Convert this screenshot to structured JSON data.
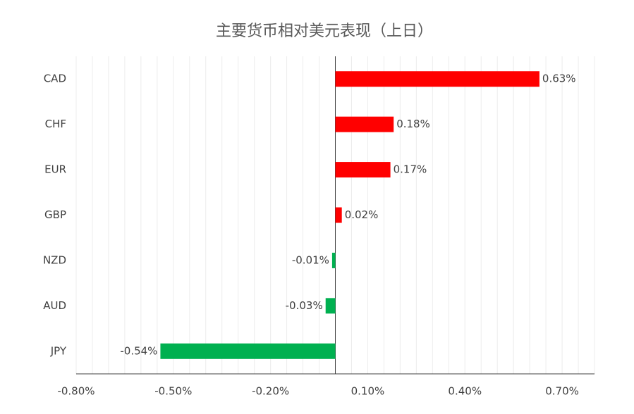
{
  "chart_data": {
    "type": "hbar",
    "title": "主要货币相对美元表现（上日）",
    "categories": [
      "CAD",
      "CHF",
      "EUR",
      "GBP",
      "NZD",
      "AUD",
      "JPY"
    ],
    "values": [
      0.63,
      0.18,
      0.17,
      0.02,
      -0.01,
      -0.03,
      -0.54
    ],
    "value_labels": [
      "0.63%",
      "0.18%",
      "0.17%",
      "0.02%",
      "-0.01%",
      "-0.03%",
      "-0.54%"
    ],
    "positive_color": "#ff0000",
    "negative_color": "#00b050",
    "xlim": [
      -0.8,
      0.8
    ],
    "xticks": [
      {
        "value": -0.8,
        "label": "-0.80%"
      },
      {
        "value": -0.5,
        "label": "-0.50%"
      },
      {
        "value": -0.2,
        "label": "-0.20%"
      },
      {
        "value": 0.1,
        "label": "0.10%"
      },
      {
        "value": 0.4,
        "label": "0.40%"
      },
      {
        "value": 0.7,
        "label": "0.70%"
      }
    ],
    "minor_xticks": [
      -0.75,
      -0.7,
      -0.65,
      -0.6,
      -0.55,
      -0.45,
      -0.4,
      -0.35,
      -0.3,
      -0.25,
      -0.15,
      -0.1,
      -0.05,
      0.05,
      0.15,
      0.2,
      0.25,
      0.3,
      0.35,
      0.45,
      0.5,
      0.55,
      0.6,
      0.65,
      0.75,
      0.8
    ],
    "grid": true
  }
}
